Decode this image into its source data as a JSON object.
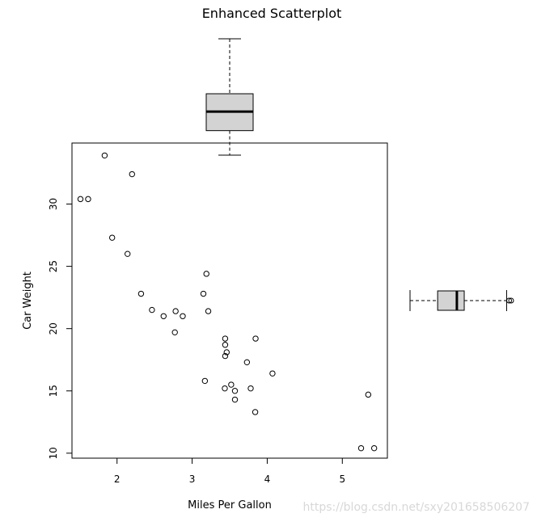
{
  "chart_data": {
    "type": "scatter",
    "title": "Enhanced Scatterplot",
    "xlabel": "Miles Per Gallon",
    "ylabel": "Car Weight",
    "xlim": [
      1.4,
      5.6
    ],
    "ylim": [
      9.6,
      34.9
    ],
    "xticks": [
      2,
      3,
      4,
      5
    ],
    "yticks": [
      10,
      15,
      20,
      25,
      30
    ],
    "x": [
      2.62,
      2.875,
      2.32,
      3.215,
      3.44,
      3.46,
      3.57,
      3.19,
      3.15,
      3.44,
      3.44,
      4.07,
      3.73,
      3.78,
      5.25,
      5.424,
      5.345,
      2.2,
      1.615,
      1.835,
      2.465,
      3.52,
      3.435,
      3.84,
      3.845,
      1.935,
      2.14,
      1.513,
      3.17,
      2.77,
      3.57,
      2.78
    ],
    "y": [
      21.0,
      21.0,
      22.8,
      21.4,
      18.7,
      18.1,
      14.3,
      24.4,
      22.8,
      19.2,
      17.8,
      16.4,
      17.3,
      15.2,
      10.4,
      10.4,
      14.7,
      32.4,
      30.4,
      33.9,
      21.5,
      15.5,
      15.2,
      13.3,
      19.2,
      27.3,
      26.0,
      30.4,
      15.8,
      19.7,
      15.0,
      21.4
    ],
    "marginal_boxplots": {
      "x": {
        "orientation": "horizontal",
        "min": 1.513,
        "q1": 2.581,
        "median": 3.325,
        "q3": 3.61,
        "max": 5.25,
        "outliers": [
          5.345,
          5.424
        ]
      },
      "y": {
        "orientation": "vertical",
        "min": 10.4,
        "q1": 15.35,
        "median": 19.2,
        "q3": 22.8,
        "max": 33.9,
        "outliers": []
      }
    },
    "grid": false,
    "legend": "none"
  },
  "watermark": "https://blog.csdn.net/sxy201658506207",
  "colors": {
    "box_fill": "#d3d3d3",
    "stroke": "#000000",
    "watermark": "#d8d8d8"
  }
}
